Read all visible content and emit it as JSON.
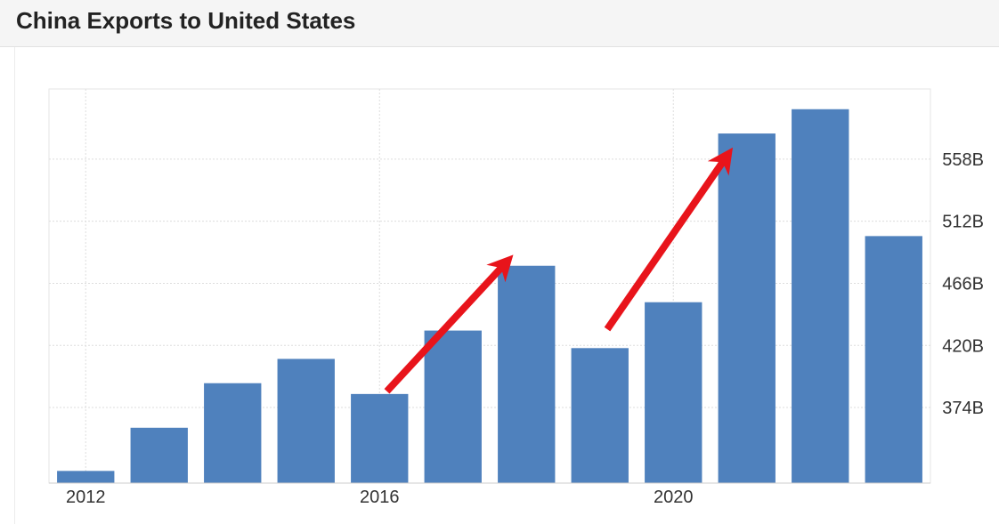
{
  "title": "China Exports to United States",
  "colors": {
    "bar": "#4f81bd",
    "arrow": "#e8141b",
    "grid": "#dddddd"
  },
  "chart_data": {
    "type": "bar",
    "title": "China Exports to United States",
    "x": [
      2012,
      2013,
      2014,
      2015,
      2016,
      2017,
      2018,
      2019,
      2020,
      2021,
      2022,
      2023
    ],
    "values": [
      327,
      359,
      392,
      410,
      384,
      431,
      479,
      418,
      452,
      577,
      595,
      501
    ],
    "unit": "B",
    "ylim": [
      318,
      610
    ],
    "yticks": [
      374,
      420,
      466,
      512,
      558
    ],
    "ytick_labels": [
      "374B",
      "420B",
      "466B",
      "512B",
      "558B"
    ],
    "xtick_labels": [
      {
        "x": 2012,
        "label": "2012"
      },
      {
        "x": 2016,
        "label": "2016"
      },
      {
        "x": 2020,
        "label": "2020"
      }
    ],
    "y_axis_position": "right",
    "grid": true,
    "annotations": [
      {
        "type": "arrow",
        "color": "#e8141b",
        "from": {
          "x": 2016.1,
          "y": 386
        },
        "to": {
          "x": 2017.75,
          "y": 483
        }
      },
      {
        "type": "arrow",
        "color": "#e8141b",
        "from": {
          "x": 2019.1,
          "y": 432
        },
        "to": {
          "x": 2020.75,
          "y": 562
        }
      }
    ]
  }
}
